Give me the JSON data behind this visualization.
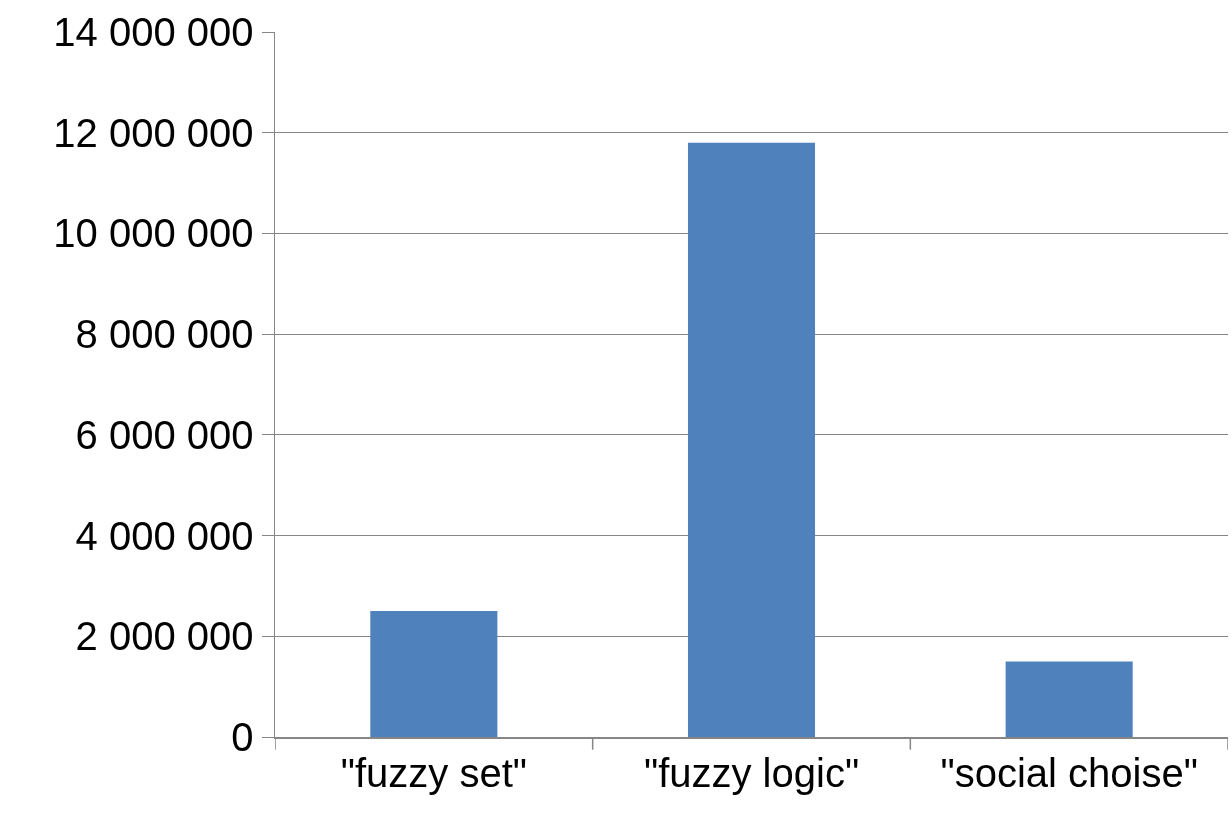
{
  "chart_data": {
    "type": "bar",
    "categories": [
      "\"fuzzy set\"",
      "\"fuzzy logic\"",
      "\"social choise\""
    ],
    "values": [
      2500000,
      11800000,
      1500000
    ],
    "color": "#4f81bd",
    "ylim": [
      0,
      14000000
    ],
    "yticks": [
      {
        "value": 0,
        "label": "0"
      },
      {
        "value": 2000000,
        "label": "2 000 000"
      },
      {
        "value": 4000000,
        "label": "4 000 000"
      },
      {
        "value": 6000000,
        "label": "6 000 000"
      },
      {
        "value": 8000000,
        "label": "8 000 000"
      },
      {
        "value": 10000000,
        "label": "10 000 000"
      },
      {
        "value": 12000000,
        "label": "12 000 000"
      },
      {
        "value": 14000000,
        "label": "14 000 000"
      }
    ],
    "grid": "y"
  }
}
